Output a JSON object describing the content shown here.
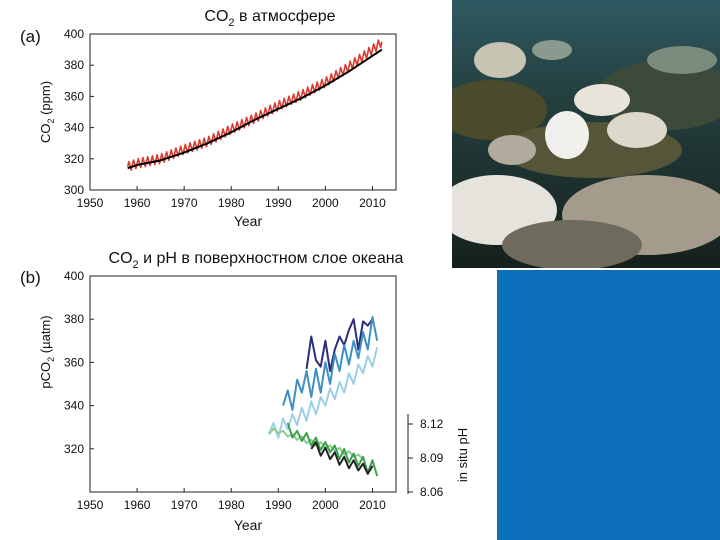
{
  "chart_data": [
    {
      "panel": "(a)",
      "type": "line",
      "title": "CO",
      "title_sub": "2",
      "title_rest": " в атмосфере",
      "xlabel": "Year",
      "ylabel": "CO",
      "ylabel_sub": "2",
      "ylabel_rest": " (ppm)",
      "xlim": [
        1950,
        2015
      ],
      "ylim": [
        300,
        400
      ],
      "xticks": [
        1950,
        1960,
        1970,
        1980,
        1990,
        2000,
        2010
      ],
      "yticks": [
        300,
        320,
        340,
        360,
        380,
        400
      ],
      "series": [
        {
          "color": "#d93a2e",
          "seasonal_amplitude": 3,
          "x": [
            1958,
            1960,
            1965,
            1970,
            1975,
            1980,
            1985,
            1990,
            1995,
            2000,
            2005,
            2010,
            2012
          ],
          "y": [
            315,
            317,
            320,
            326,
            331,
            339,
            346,
            354,
            361,
            369,
            379,
            390,
            395
          ]
        },
        {
          "color": "#000000",
          "x": [
            1958,
            1960,
            1965,
            1970,
            1975,
            1980,
            1985,
            1990,
            1995,
            2000,
            2005,
            2010,
            2012
          ],
          "y": [
            314,
            316,
            319,
            324,
            330,
            337,
            345,
            352,
            359,
            367,
            376,
            386,
            390
          ]
        }
      ]
    },
    {
      "panel": "(b)",
      "type": "line",
      "title": "CO",
      "title_sub": "2",
      "title_rest": " и pH в поверхностном слое океана",
      "xlabel": "Year",
      "ylabel": "pCO",
      "ylabel_sub": "2",
      "ylabel_rest": " (µatm)",
      "y2label": "in situ pH",
      "xlim": [
        1950,
        2015
      ],
      "ylim": [
        300,
        400
      ],
      "y2lim": [
        8.06,
        8.12
      ],
      "xticks": [
        1950,
        1960,
        1970,
        1980,
        1990,
        2000,
        2010
      ],
      "yticks": [
        320,
        340,
        360,
        380,
        400
      ],
      "y2ticks": [
        8.06,
        8.09,
        8.12
      ],
      "series": [
        {
          "axis": "left",
          "color": "#2a2f7a",
          "x": [
            1996,
            1997,
            1998,
            1999,
            2000,
            2001,
            2002,
            2003,
            2004,
            2005,
            2006,
            2007,
            2008,
            2009,
            2010
          ],
          "y": [
            357,
            372,
            361,
            358,
            370,
            356,
            366,
            372,
            368,
            375,
            380,
            366,
            379,
            377,
            380
          ]
        },
        {
          "axis": "left",
          "color": "#3e8fc4",
          "x": [
            1991,
            1992,
            1993,
            1994,
            1995,
            1996,
            1997,
            1998,
            1999,
            2000,
            2001,
            2002,
            2003,
            2004,
            2005,
            2006,
            2007,
            2008,
            2009,
            2010,
            2011
          ],
          "y": [
            340,
            347,
            338,
            352,
            346,
            356,
            344,
            357,
            346,
            360,
            350,
            364,
            356,
            368,
            359,
            370,
            362,
            374,
            366,
            381,
            370
          ]
        },
        {
          "axis": "left",
          "color": "#9cd0e6",
          "x": [
            1988,
            1989,
            1990,
            1991,
            1992,
            1993,
            1994,
            1995,
            1996,
            1997,
            1998,
            1999,
            2000,
            2001,
            2002,
            2003,
            2004,
            2005,
            2006,
            2007,
            2008,
            2009,
            2010,
            2011
          ],
          "y": [
            327,
            332,
            325,
            334,
            329,
            336,
            331,
            339,
            333,
            342,
            336,
            344,
            340,
            348,
            343,
            351,
            346,
            355,
            350,
            359,
            355,
            363,
            358,
            367
          ]
        },
        {
          "axis": "right",
          "color": "#8fca8e",
          "x": [
            1988,
            1989,
            1990,
            1991,
            1992,
            1993,
            1994,
            1995,
            1996,
            1997,
            1998,
            1999,
            2000,
            2001,
            2002,
            2003,
            2004,
            2005,
            2006,
            2007,
            2008
          ],
          "y": [
            8.111,
            8.116,
            8.112,
            8.114,
            8.109,
            8.111,
            8.106,
            8.109,
            8.103,
            8.106,
            8.101,
            8.104,
            8.099,
            8.101,
            8.096,
            8.099,
            8.093,
            8.096,
            8.091,
            8.093,
            8.089
          ]
        },
        {
          "axis": "right",
          "color": "#3aa24a",
          "x": [
            1992,
            1993,
            1994,
            1995,
            1996,
            1997,
            1998,
            1999,
            2000,
            2001,
            2002,
            2003,
            2004,
            2005,
            2006,
            2007,
            2008,
            2009,
            2010,
            2011
          ],
          "y": [
            8.121,
            8.108,
            8.114,
            8.105,
            8.112,
            8.101,
            8.108,
            8.097,
            8.104,
            8.095,
            8.101,
            8.089,
            8.098,
            8.086,
            8.094,
            8.083,
            8.091,
            8.077,
            8.088,
            8.074
          ]
        },
        {
          "axis": "right",
          "color": "#222222",
          "x": [
            1997,
            1998,
            1999,
            2000,
            2001,
            2002,
            2003,
            2004,
            2005,
            2006,
            2007,
            2008,
            2009,
            2010
          ],
          "y": [
            8.098,
            8.104,
            8.092,
            8.099,
            8.089,
            8.095,
            8.084,
            8.091,
            8.081,
            8.088,
            8.079,
            8.085,
            8.076,
            8.083
          ]
        }
      ]
    }
  ],
  "side_panel": {
    "color": "#0c6fba"
  }
}
